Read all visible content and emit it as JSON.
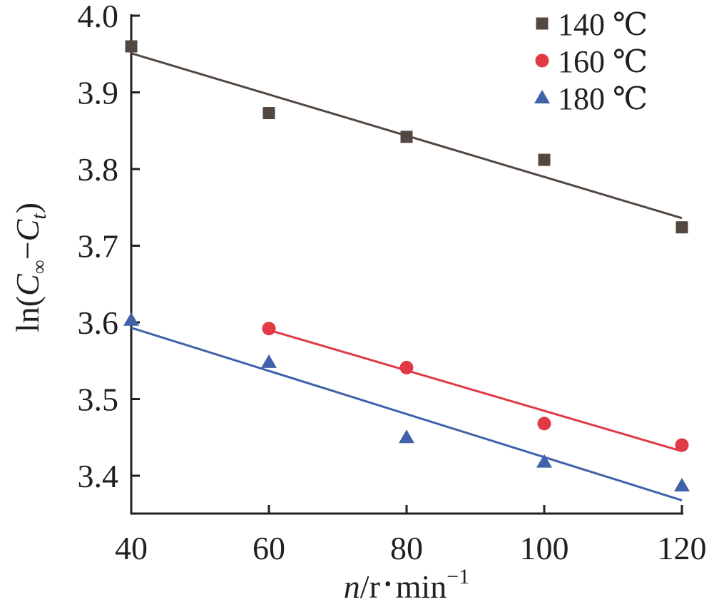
{
  "chart_data": {
    "type": "scatter",
    "xlim": [
      40,
      120
    ],
    "ylim": [
      3.35,
      4.0
    ],
    "grid": false,
    "legend_placement": "top-right",
    "x_ticks": [
      "40",
      "60",
      "80",
      "100",
      "120"
    ],
    "y_ticks": [
      "3.4",
      "3.5",
      "3.6",
      "3.7",
      "3.8",
      "3.9",
      "4.0"
    ],
    "xlabel": {
      "var": "n",
      "rest": "/r",
      "dot": "•",
      "unit": "min",
      "sup": "−1"
    },
    "ylabel": {
      "pre": "ln(",
      "c1": "C",
      "sub1": "∞",
      "mid": "−",
      "c2": "C",
      "sub2": "t",
      "post": ")"
    },
    "series": [
      {
        "name": "140 ℃",
        "marker": "square",
        "color": "#534741",
        "points": [
          [
            40,
            3.96
          ],
          [
            60,
            3.873
          ],
          [
            80,
            3.842
          ],
          [
            100,
            3.812
          ],
          [
            120,
            3.724
          ]
        ],
        "fit": [
          [
            40,
            3.951
          ],
          [
            120,
            3.736
          ]
        ]
      },
      {
        "name": "160 ℃",
        "marker": "circle",
        "color": "#e03a45",
        "points": [
          [
            60,
            3.592
          ],
          [
            80,
            3.541
          ],
          [
            100,
            3.468
          ],
          [
            120,
            3.44
          ]
        ],
        "fit": [
          [
            60,
            3.59
          ],
          [
            120,
            3.432
          ]
        ]
      },
      {
        "name": "180 ℃",
        "marker": "triangle",
        "color": "#3f62a8",
        "points": [
          [
            40,
            3.603
          ],
          [
            60,
            3.548
          ],
          [
            80,
            3.45
          ],
          [
            100,
            3.418
          ],
          [
            120,
            3.387
          ]
        ],
        "fit": [
          [
            40,
            3.593
          ],
          [
            120,
            3.368
          ]
        ]
      }
    ]
  }
}
